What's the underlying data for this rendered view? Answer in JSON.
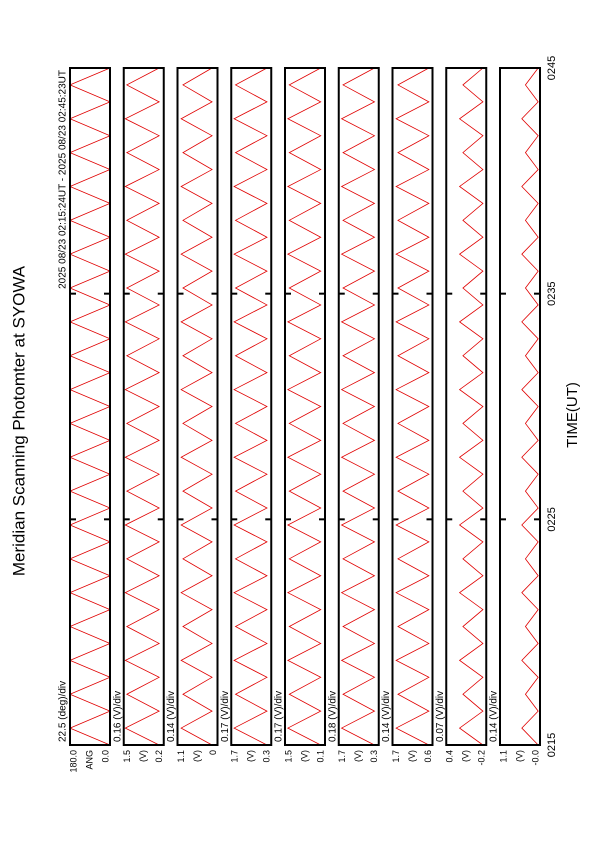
{
  "chart_data": {
    "type": "line",
    "title": "Meridian Scanning Photomter at SYOWA",
    "subtitle": "2025 08/23 02:15:24UT - 2025 08/23 02:45:23UT",
    "x_label": "TIME(UT)",
    "x": [
      15,
      15.75,
      16.5,
      17.25,
      18,
      18.75,
      19.5,
      20.25,
      21,
      21.75,
      22.5,
      23.25,
      24,
      24.75,
      25.5,
      26.25,
      27,
      27.75,
      28.5,
      29.25,
      30,
      30.75,
      31.5,
      32.25,
      33,
      33.75,
      34.5,
      35.25,
      36,
      36.75,
      37.5,
      38.25,
      39,
      39.75,
      40.5,
      41.25,
      42,
      42.75,
      43.5,
      44.25,
      45
    ],
    "xlim": [
      15,
      45
    ],
    "xticks": [
      {
        "value": 15,
        "label": "0215"
      },
      {
        "value": 25,
        "label": "0225"
      },
      {
        "value": 35,
        "label": "0235"
      },
      {
        "value": 45,
        "label": "0245"
      }
    ],
    "series": [
      {
        "name": "ANG",
        "color": "#e00000",
        "scale_label": "22.5 (deg)/div",
        "ylim": [
          0,
          180
        ],
        "yticks": [
          {
            "value": 180,
            "label": "180.0"
          },
          {
            "value": 0,
            "label": "0.0"
          }
        ],
        "values": [
          0,
          180,
          0,
          180,
          0,
          180,
          0,
          180,
          0,
          180,
          0,
          180,
          0,
          180,
          0,
          180,
          0,
          180,
          0,
          180,
          0,
          180,
          0,
          180,
          0,
          180,
          0,
          180,
          0,
          180,
          0,
          180,
          0,
          180,
          0,
          180,
          0,
          180,
          0,
          180,
          0
        ]
      },
      {
        "name": "(V)",
        "color": "#e00000",
        "scale_label": "0.16 (V)/div",
        "ylim": [
          0.2,
          1.5
        ],
        "yticks": [
          1.5,
          0.2
        ],
        "values": [
          0.35,
          1.45,
          0.35,
          1.4,
          0.35,
          1.45,
          0.35,
          1.4,
          0.35,
          1.45,
          0.35,
          1.4,
          0.35,
          1.45,
          0.35,
          1.4,
          0.35,
          1.45,
          0.35,
          1.4,
          0.35,
          1.45,
          0.35,
          1.4,
          0.35,
          1.45,
          0.35,
          1.4,
          0.35,
          1.45,
          0.35,
          1.4,
          0.35,
          1.45,
          0.35,
          1.4,
          0.35,
          1.45,
          0.35,
          1.4,
          0.35
        ]
      },
      {
        "name": "(V)",
        "color": "#e00000",
        "scale_label": "0.14 (V)/div",
        "ylim": [
          0,
          1.1
        ],
        "yticks": [
          1.1,
          0
        ],
        "values": [
          0.15,
          1,
          0.15,
          0.95,
          0.15,
          1,
          0.15,
          0.95,
          0.15,
          1,
          0.15,
          0.95,
          0.15,
          1,
          0.15,
          0.95,
          0.15,
          1,
          0.15,
          0.95,
          0.15,
          1,
          0.15,
          0.95,
          0.15,
          1,
          0.15,
          0.95,
          0.15,
          1,
          0.15,
          0.95,
          0.15,
          1,
          0.15,
          0.95,
          0.15,
          1,
          0.15,
          0.95,
          0.15
        ]
      },
      {
        "name": "(V)",
        "color": "#e00000",
        "scale_label": "0.17 (V)/div",
        "ylim": [
          0.3,
          1.7
        ],
        "yticks": [
          1.7,
          0.3
        ],
        "values": [
          0.45,
          1.6,
          0.45,
          1.55,
          0.45,
          1.6,
          0.45,
          1.55,
          0.45,
          1.6,
          0.45,
          1.55,
          0.45,
          1.6,
          0.45,
          1.55,
          0.45,
          1.6,
          0.45,
          1.55,
          0.45,
          1.6,
          0.45,
          1.55,
          0.45,
          1.6,
          0.45,
          1.55,
          0.45,
          1.6,
          0.45,
          1.55,
          0.45,
          1.6,
          0.45,
          1.55,
          0.45,
          1.6,
          0.45,
          1.55,
          0.45
        ]
      },
      {
        "name": "(V)",
        "color": "#e00000",
        "scale_label": "0.17 (V)/div",
        "ylim": [
          0.1,
          1.5
        ],
        "yticks": [
          1.5,
          0.1
        ],
        "values": [
          0.25,
          1.4,
          0.25,
          1.35,
          0.25,
          1.4,
          0.25,
          1.35,
          0.25,
          1.4,
          0.25,
          1.35,
          0.25,
          1.4,
          0.25,
          1.35,
          0.25,
          1.4,
          0.25,
          1.35,
          0.25,
          1.4,
          0.25,
          1.35,
          0.25,
          1.4,
          0.25,
          1.35,
          0.25,
          1.4,
          0.25,
          1.35,
          0.25,
          1.4,
          0.25,
          1.35,
          0.25,
          1.4,
          0.25,
          1.35,
          0.25
        ]
      },
      {
        "name": "(V)",
        "color": "#e00000",
        "scale_label": "0.18 (V)/div",
        "ylim": [
          0.3,
          1.7
        ],
        "yticks": [
          1.7,
          0.3
        ],
        "values": [
          0.45,
          1.6,
          0.45,
          1.55,
          0.45,
          1.6,
          0.45,
          1.55,
          0.45,
          1.6,
          0.45,
          1.55,
          0.45,
          1.6,
          0.45,
          1.55,
          0.45,
          1.6,
          0.45,
          1.55,
          0.45,
          1.6,
          0.45,
          1.55,
          0.45,
          1.6,
          0.45,
          1.55,
          0.45,
          1.6,
          0.45,
          1.55,
          0.45,
          1.6,
          0.45,
          1.55,
          0.45,
          1.6,
          0.45,
          1.55,
          0.45
        ]
      },
      {
        "name": "(V)",
        "color": "#e00000",
        "scale_label": "0.14 (V)/div",
        "ylim": [
          0.6,
          1.7
        ],
        "yticks": [
          1.7,
          0.6
        ],
        "values": [
          0.7,
          1.6,
          0.7,
          1.55,
          0.7,
          1.6,
          0.7,
          1.55,
          0.7,
          1.6,
          0.7,
          1.55,
          0.7,
          1.6,
          0.7,
          1.55,
          0.7,
          1.6,
          0.7,
          1.55,
          0.7,
          1.6,
          0.7,
          1.55,
          0.7,
          1.6,
          0.7,
          1.55,
          0.7,
          1.6,
          0.7,
          1.55,
          0.7,
          1.6,
          0.7,
          1.55,
          0.7,
          1.6,
          0.7,
          1.55,
          0.7
        ]
      },
      {
        "name": "(V)",
        "color": "#e00000",
        "scale_label": "0.07 (V)/div",
        "ylim": [
          -0.2,
          0.4
        ],
        "yticks": [
          0.4,
          -0.2
        ],
        "values": [
          -0.15,
          0.2,
          -0.15,
          0.15,
          -0.15,
          0.2,
          -0.15,
          0.15,
          -0.15,
          0.2,
          -0.15,
          0.15,
          -0.15,
          0.2,
          -0.15,
          0.15,
          -0.15,
          0.2,
          -0.15,
          0.15,
          -0.15,
          0.2,
          -0.15,
          0.15,
          -0.15,
          0.2,
          -0.15,
          0.15,
          -0.15,
          0.2,
          -0.15,
          0.15,
          -0.15,
          0.2,
          -0.15,
          0.15,
          -0.15,
          0.2,
          -0.15,
          0.15,
          -0.15
        ]
      },
      {
        "name": "(V)",
        "color": "#e00000",
        "scale_label": "0.14 (V)/div",
        "ylim": [
          0,
          1.1
        ],
        "yticks": [
          1.1,
          {
            "value": 0,
            "label": "-0.0"
          }
        ],
        "values": [
          0.05,
          0.5,
          0.05,
          0.4,
          0.05,
          0.5,
          0.05,
          0.4,
          0.05,
          0.5,
          0.05,
          0.4,
          0.05,
          0.5,
          0.05,
          0.4,
          0.05,
          0.5,
          0.05,
          0.4,
          0.05,
          0.5,
          0.05,
          0.4,
          0.05,
          0.5,
          0.05,
          0.4,
          0.05,
          0.5,
          0.05,
          0.4,
          0.05,
          0.5,
          0.05,
          0.4,
          0.05,
          0.5,
          0.05,
          0.4,
          0.05
        ]
      }
    ]
  }
}
